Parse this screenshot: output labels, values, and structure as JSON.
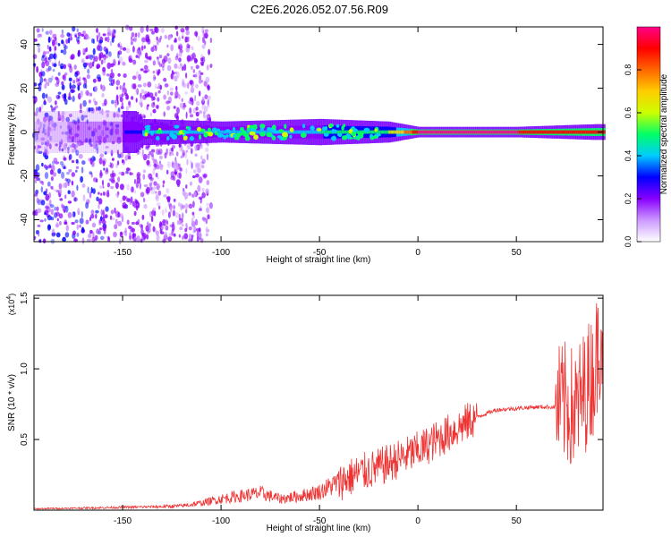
{
  "title": "C2E6.2026.052.07.56.R09",
  "chart_data": [
    {
      "type": "heatmap",
      "xlabel": "Height of straight line (km)",
      "ylabel": "Frequency (Hz)",
      "xlim": [
        -195,
        94
      ],
      "ylim": [
        -50,
        48
      ],
      "xticks": [
        -150,
        -100,
        -50,
        0,
        50
      ],
      "yticks": [
        -40,
        -20,
        0,
        20,
        40
      ],
      "colorbar": {
        "label": "Normalized spectral amplitude",
        "range": [
          0,
          1
        ],
        "ticks": [
          "0.0",
          "0.2",
          "0.4",
          "0.6",
          "0.8"
        ],
        "position": "right",
        "colors": [
          "#ffffff",
          "#cc99ff",
          "#8800ff",
          "#0000ff",
          "#00ccff",
          "#00ff66",
          "#ccff00",
          "#ffcc00",
          "#ff6600",
          "#ff0000",
          "#ff0088"
        ]
      },
      "description_points": [
        {
          "x": -190,
          "band_halfwidth_hz": 50,
          "peak_amplitude": 0.25
        },
        {
          "x": -140,
          "band_halfwidth_hz": 5,
          "peak_amplitude": 0.35
        },
        {
          "x": -100,
          "band_halfwidth_hz": 4,
          "peak_amplitude": 0.4
        },
        {
          "x": -50,
          "band_halfwidth_hz": 5,
          "peak_amplitude": 0.45
        },
        {
          "x": -15,
          "band_halfwidth_hz": 4,
          "peak_amplitude": 0.55
        },
        {
          "x": 0,
          "band_halfwidth_hz": 2,
          "peak_amplitude": 0.95
        },
        {
          "x": 50,
          "band_halfwidth_hz": 2,
          "peak_amplitude": 0.95
        },
        {
          "x": 90,
          "band_halfwidth_hz": 3,
          "peak_amplitude": 0.9
        }
      ]
    },
    {
      "type": "line",
      "xlabel": "Height of straight line (km)",
      "ylabel": "SNR (10 * v/v)",
      "multiplier": "(x10",
      "multiplier_exp": "4",
      "multiplier_close": ")",
      "xlim": [
        -195,
        94
      ],
      "ylim": [
        0,
        1.52
      ],
      "xticks": [
        -150,
        -100,
        -50,
        0,
        50
      ],
      "yticks": [
        "0.5",
        "1.0",
        "1.5"
      ],
      "series": [
        {
          "color": "#ee3333",
          "x": [
            -195,
            -170,
            -150,
            -130,
            -120,
            -110,
            -100,
            -90,
            -80,
            -70,
            -60,
            -50,
            -40,
            -30,
            -20,
            -10,
            0,
            10,
            20,
            30,
            40,
            50,
            60,
            70,
            75,
            80,
            85,
            90,
            93
          ],
          "y": [
            0.01,
            0.015,
            0.02,
            0.025,
            0.03,
            0.05,
            0.08,
            0.1,
            0.12,
            0.08,
            0.1,
            0.13,
            0.2,
            0.26,
            0.3,
            0.36,
            0.42,
            0.5,
            0.58,
            0.66,
            0.71,
            0.72,
            0.73,
            0.73,
            0.75,
            0.7,
            0.85,
            1.0,
            1.3
          ]
        }
      ]
    }
  ]
}
